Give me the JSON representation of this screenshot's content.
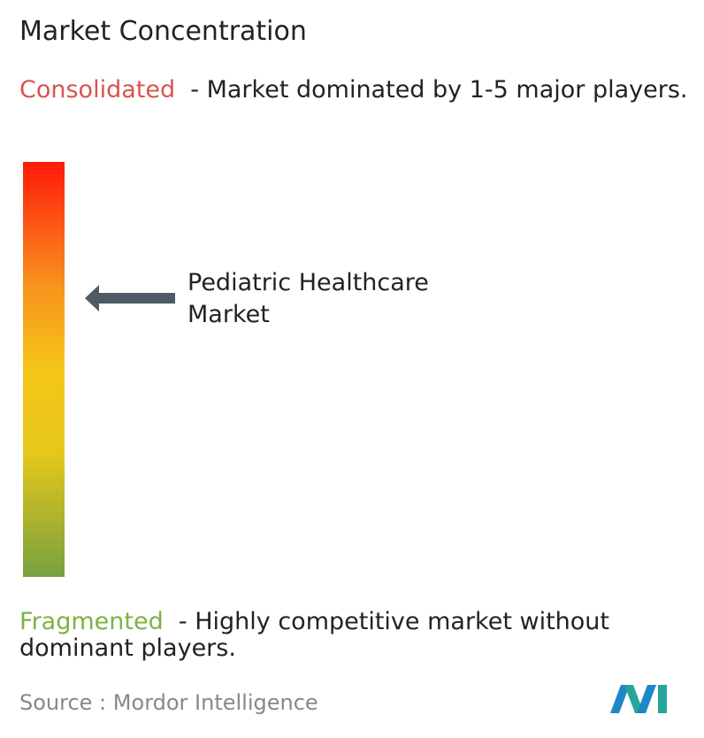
{
  "header": {
    "title": "Market Concentration"
  },
  "scale": {
    "top": {
      "label": "Consolidated",
      "description": "- Market dominated by 1-5 major players."
    },
    "bottom": {
      "label": "Fragmented",
      "description": "- Highly competitive market without dominant players."
    }
  },
  "marker": {
    "label": "Pediatric Healthcare Market"
  },
  "footer": {
    "source_label": "Source :",
    "source": "Mordor Intelligence"
  }
}
